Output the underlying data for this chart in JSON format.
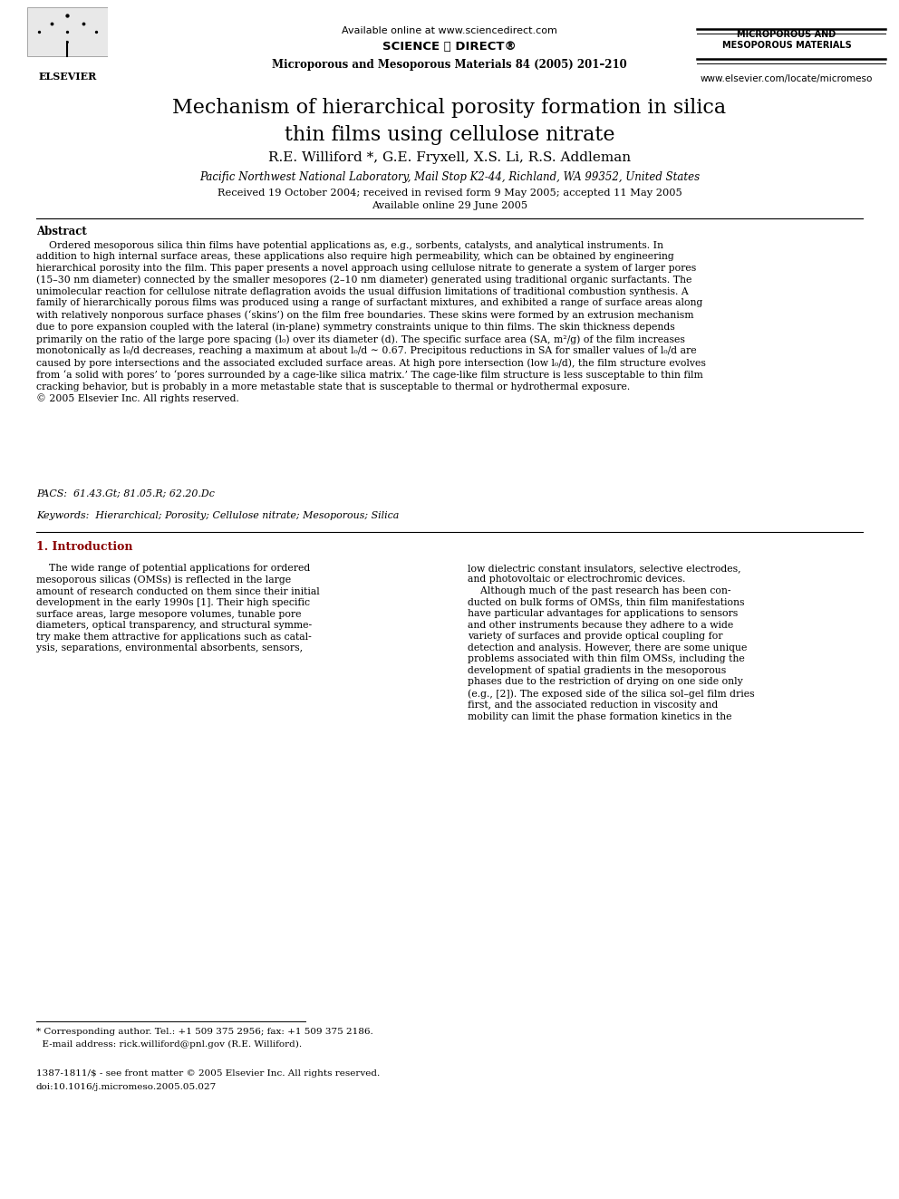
{
  "background_color": "#ffffff",
  "page_width": 9.92,
  "page_height": 13.23,
  "header": {
    "available_online": "Available online at www.sciencedirect.com",
    "journal_name_top": "MICROPOROUS AND\nMESOPOROUS MATERIALS",
    "journal_ref": "Microporous and Mesoporous Materials 84 (2005) 201–210",
    "website": "www.elsevier.com/locate/micromeso"
  },
  "title": "Mechanism of hierarchical porosity formation in silica\nthin films using cellulose nitrate",
  "authors": "R.E. Williford *, G.E. Fryxell, X.S. Li, R.S. Addleman",
  "affiliation": "Pacific Northwest National Laboratory, Mail Stop K2-44, Richland, WA 99352, United States",
  "received": "Received 19 October 2004; received in revised form 9 May 2005; accepted 11 May 2005\nAvailable online 29 June 2005",
  "abstract_title": "Abstract",
  "abstract_text": "    Ordered mesoporous silica thin films have potential applications as, e.g., sorbents, catalysts, and analytical instruments. In\naddition to high internal surface areas, these applications also require high permeability, which can be obtained by engineering\nhierarchical porosity into the film. This paper presents a novel approach using cellulose nitrate to generate a system of larger pores\n(15–30 nm diameter) connected by the smaller mesopores (2–10 nm diameter) generated using traditional organic surfactants. The\nunimolecular reaction for cellulose nitrate deflagration avoids the usual diffusion limitations of traditional combustion synthesis. A\nfamily of hierarchically porous films was produced using a range of surfactant mixtures, and exhibited a range of surface areas along\nwith relatively nonporous surface phases (‘skins’) on the film free boundaries. These skins were formed by an extrusion mechanism\ndue to pore expansion coupled with the lateral (in-plane) symmetry constraints unique to thin films. The skin thickness depends\nprimarily on the ratio of the large pore spacing (l₀) over its diameter (d). The specific surface area (SA, m²/g) of the film increases\nmonotonically as l₀/d decreases, reaching a maximum at about l₀/d ∼ 0.67. Precipitous reductions in SA for smaller values of l₀/d are\ncaused by pore intersections and the associated excluded surface areas. At high pore intersection (low l₀/d), the film structure evolves\nfrom ‘a solid with pores’ to ‘pores surrounded by a cage-like silica matrix.’ The cage-like film structure is less susceptable to thin film\ncracking behavior, but is probably in a more metastable state that is susceptable to thermal or hydrothermal exposure.\n© 2005 Elsevier Inc. All rights reserved.",
  "pacs": "PACS:  61.43.Gt; 81.05.R; 62.20.Dc",
  "keywords": "Keywords:  Hierarchical; Porosity; Cellulose nitrate; Mesoporous; Silica",
  "section1_title": "1. Introduction",
  "section1_col1": "    The wide range of potential applications for ordered\nmesoporous silicas (OMSs) is reflected in the large\namount of research conducted on them since their initial\ndevelopment in the early 1990s [1]. Their high specific\nsurface areas, large mesopore volumes, tunable pore\ndiameters, optical transparency, and structural symme-\ntry make them attractive for applications such as catal-\nysis, separations, environmental absorbents, sensors,",
  "section1_col2": "low dielectric constant insulators, selective electrodes,\nand photovoltaic or electrochromic devices.\n    Although much of the past research has been con-\nducted on bulk forms of OMSs, thin film manifestations\nhave particular advantages for applications to sensors\nand other instruments because they adhere to a wide\nvariety of surfaces and provide optical coupling for\ndetection and analysis. However, there are some unique\nproblems associated with thin film OMSs, including the\ndevelopment of spatial gradients in the mesoporous\nphases due to the restriction of drying on one side only\n(e.g., [2]). The exposed side of the silica sol–gel film dries\nfirst, and the associated reduction in viscosity and\nmobility can limit the phase formation kinetics in the",
  "footnote_line1": "* Corresponding author. Tel.: +1 509 375 2956; fax: +1 509 375 2186.",
  "footnote_line2": "  E-mail address: rick.williford@pnl.gov (R.E. Williford).",
  "footer_line1": "1387-1811/$ - see front matter © 2005 Elsevier Inc. All rights reserved.",
  "footer_line2": "doi:10.1016/j.micromeso.2005.05.027"
}
